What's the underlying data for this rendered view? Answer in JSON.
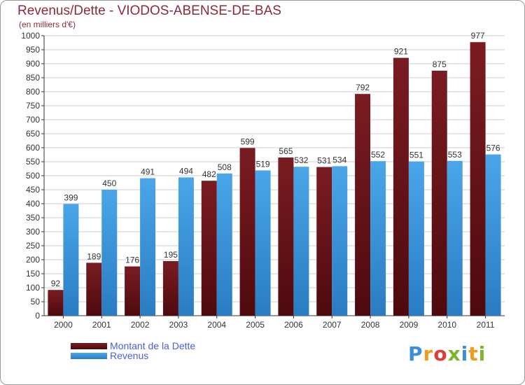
{
  "title": "Revenus/Dette - VIODOS-ABENSE-DE-BAS",
  "subtitle": "(en milliers d'€)",
  "logo": "Proxiti",
  "legend": {
    "dette_label": "Montant de la Dette",
    "revenus_label": "Revenus"
  },
  "colors": {
    "dette": "#7a1c22",
    "dette_dark": "#4e0a0e",
    "revenus": "#4aa6e8",
    "revenus_dark": "#2a7cc2",
    "grid": "#cccccc",
    "axis": "#333333"
  },
  "chart_data": {
    "type": "bar",
    "title": "Revenus/Dette - VIODOS-ABENSE-DE-BAS",
    "subtitle": "(en milliers d'€)",
    "xlabel": "",
    "ylabel": "",
    "ylim": [
      0,
      1000
    ],
    "yticks": [
      0,
      50,
      100,
      150,
      200,
      250,
      300,
      350,
      400,
      450,
      500,
      550,
      600,
      650,
      700,
      750,
      800,
      850,
      900,
      950,
      1000
    ],
    "categories": [
      "2000",
      "2001",
      "2002",
      "2003",
      "2004",
      "2005",
      "2006",
      "2007",
      "2008",
      "2009",
      "2010",
      "2011"
    ],
    "series": [
      {
        "name": "Montant de la Dette",
        "values": [
          92,
          189,
          176,
          195,
          482,
          599,
          565,
          531,
          792,
          921,
          875,
          977
        ]
      },
      {
        "name": "Revenus",
        "values": [
          399,
          450,
          491,
          494,
          508,
          519,
          532,
          534,
          552,
          551,
          553,
          576
        ]
      }
    ],
    "grid": true,
    "legend_position": "bottom-left"
  }
}
